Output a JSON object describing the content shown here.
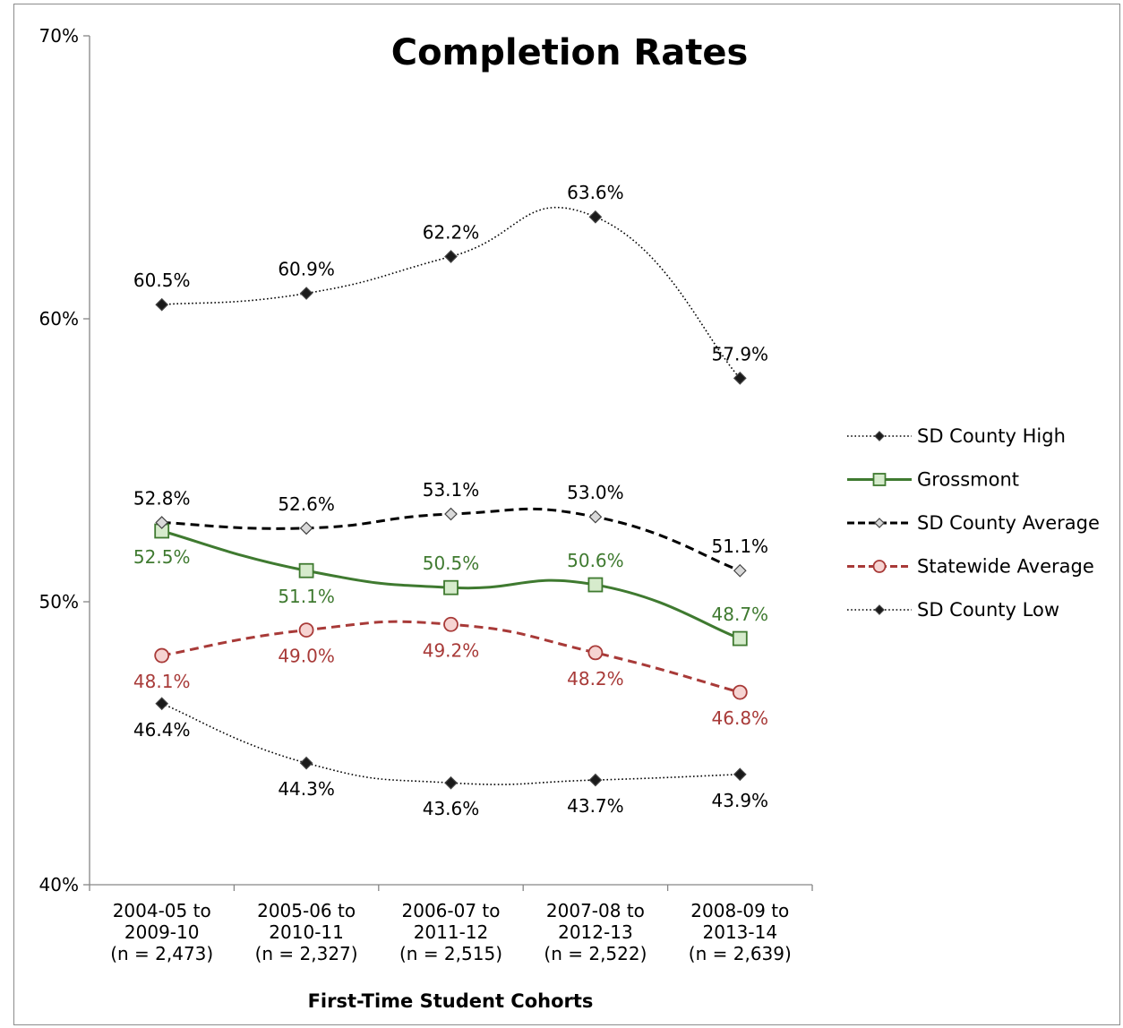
{
  "chart_data": {
    "type": "line",
    "title": "Completion Rates",
    "xlabel": "First-Time Student Cohorts",
    "ylabel": "",
    "ylim": [
      40,
      70
    ],
    "yticks": [
      "40%",
      "50%",
      "60%",
      "70%"
    ],
    "grid": false,
    "legend_position": "right",
    "categories": [
      [
        "2004-05 to",
        "2009-10",
        "(n = 2,473)"
      ],
      [
        "2005-06 to",
        "2010-11",
        "(n = 2,327)"
      ],
      [
        "2006-07 to",
        "2011-12",
        "(n = 2,515)"
      ],
      [
        "2007-08 to",
        "2012-13",
        "(n = 2,522)"
      ],
      [
        "2008-09 to",
        "2013-14",
        "(n = 2,639)"
      ]
    ],
    "series": [
      {
        "name": "SD County High",
        "values": [
          60.5,
          60.9,
          62.2,
          63.6,
          57.9
        ],
        "labels": [
          "60.5%",
          "60.9%",
          "62.2%",
          "63.6%",
          "57.9%"
        ],
        "color": "#000000",
        "label_color": "#000000",
        "line_style": "dotted",
        "marker": "diamond",
        "marker_fill": "#1a1a1a",
        "label_position": [
          "above",
          "above",
          "above",
          "above",
          "above"
        ]
      },
      {
        "name": "Grossmont",
        "values": [
          52.5,
          51.1,
          50.5,
          50.6,
          48.7
        ],
        "labels": [
          "52.5%",
          "51.1%",
          "50.5%",
          "50.6%",
          "48.7%"
        ],
        "color": "#3f7a30",
        "label_color": "#3f7a30",
        "line_style": "solid",
        "marker": "square",
        "marker_fill": "#d6ebcc",
        "label_position": [
          "below",
          "below",
          "above",
          "above",
          "above"
        ]
      },
      {
        "name": "SD County Average",
        "values": [
          52.8,
          52.6,
          53.1,
          53.0,
          51.1
        ],
        "labels": [
          "52.8%",
          "52.6%",
          "53.1%",
          "53.0%",
          "51.1%"
        ],
        "color": "#000000",
        "label_color": "#000000",
        "line_style": "dashed",
        "marker": "diamond",
        "marker_fill": "#d9d9d9",
        "label_position": [
          "above",
          "above",
          "above",
          "above",
          "above"
        ]
      },
      {
        "name": "Statewide Average",
        "values": [
          48.1,
          49.0,
          49.2,
          48.2,
          46.8
        ],
        "labels": [
          "48.1%",
          "49.0%",
          "49.2%",
          "48.2%",
          "46.8%"
        ],
        "color": "#a83a38",
        "label_color": "#a83a38",
        "line_style": "dashed",
        "marker": "circle",
        "marker_fill": "#f6d4d2",
        "label_position": [
          "below",
          "below",
          "below",
          "below",
          "below"
        ]
      },
      {
        "name": "SD County Low",
        "values": [
          46.4,
          44.3,
          43.6,
          43.7,
          43.9
        ],
        "labels": [
          "46.4%",
          "44.3%",
          "43.6%",
          "43.7%",
          "43.9%"
        ],
        "color": "#000000",
        "label_color": "#000000",
        "line_style": "dotted",
        "marker": "diamond",
        "marker_fill": "#1a1a1a",
        "label_position": [
          "below",
          "below",
          "below",
          "below",
          "below"
        ]
      }
    ]
  }
}
